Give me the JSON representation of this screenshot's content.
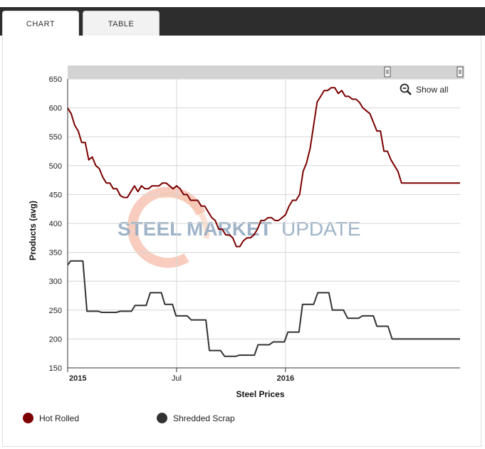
{
  "tabs": [
    {
      "label": "CHART"
    },
    {
      "label": "TABLE"
    }
  ],
  "zoom": {
    "label": "Show all"
  },
  "watermark": {
    "word1": "STEEL",
    "word2": "MARKET",
    "word3": "UPDATE"
  },
  "colors": {
    "hot_rolled": "#7b0000",
    "scrap": "#333333",
    "grid": "#d6d6d6",
    "navigator": "#d3d3d3",
    "watermark_text": "#8fa8bf",
    "watermark_swoosh": "#f2a48a"
  },
  "chart_data": {
    "type": "line",
    "title": "",
    "xlabel": "Steel Prices",
    "ylabel": "Products (avg)",
    "ylim": [
      150,
      650
    ],
    "yticks": [
      150,
      200,
      250,
      300,
      350,
      400,
      450,
      500,
      550,
      600,
      650
    ],
    "xlim": [
      0,
      67
    ],
    "xticks": [
      {
        "x": 0,
        "label": "2015"
      },
      {
        "x": 18.6,
        "label": "Jul"
      },
      {
        "x": 37.2,
        "label": "2016"
      }
    ],
    "series": [
      {
        "name": "Hot Rolled",
        "color": "#7b0000",
        "x": [
          0,
          0.6,
          1.2,
          1.8,
          2.4,
          3,
          3.6,
          4.2,
          4.8,
          5.4,
          6,
          6.6,
          7.2,
          7.8,
          8.4,
          9,
          9.6,
          10.2,
          10.8,
          11.4,
          12,
          12.6,
          13.2,
          13.8,
          14.4,
          15,
          15.6,
          16.2,
          16.8,
          17.4,
          18,
          18.6,
          19.2,
          19.8,
          20.4,
          21,
          21.6,
          22.2,
          22.8,
          23.4,
          24,
          24.6,
          25.2,
          25.8,
          26.4,
          27,
          27.6,
          28.2,
          28.8,
          29.4,
          30,
          30.6,
          31.2,
          31.8,
          32.4,
          33,
          33.6,
          34.2,
          34.8,
          35.4,
          36,
          36.6,
          37.2,
          37.8,
          38.4,
          39,
          39.6,
          40.2,
          40.8,
          41.4,
          42,
          42.6,
          43.2,
          43.8,
          44.4,
          45,
          45.6,
          46.2,
          46.8,
          47.4,
          48,
          48.6,
          49.2,
          49.8,
          50.4,
          51,
          51.6,
          52.2,
          52.8,
          53.4,
          54,
          54.6,
          55.2,
          55.8,
          56.4,
          57,
          57.6,
          58.2,
          58.8,
          59.4,
          60,
          60.6,
          61.2,
          61.8,
          62.4,
          63,
          63.6,
          64.2,
          64.8,
          65.4,
          66,
          66.6,
          67
        ],
        "y": [
          600,
          590,
          570,
          560,
          540,
          540,
          510,
          515,
          500,
          495,
          480,
          470,
          470,
          460,
          460,
          448,
          445,
          445,
          455,
          465,
          455,
          465,
          460,
          460,
          465,
          465,
          465,
          470,
          470,
          465,
          460,
          465,
          460,
          450,
          450,
          440,
          440,
          440,
          430,
          430,
          420,
          410,
          405,
          390,
          390,
          380,
          380,
          375,
          360,
          360,
          370,
          375,
          375,
          380,
          390,
          405,
          405,
          410,
          410,
          405,
          405,
          410,
          415,
          430,
          440,
          440,
          450,
          490,
          505,
          530,
          570,
          610,
          620,
          630,
          630,
          635,
          635,
          625,
          630,
          620,
          620,
          615,
          615,
          610,
          600,
          595,
          590,
          575,
          560,
          560,
          525,
          525,
          510,
          500,
          490,
          470,
          470,
          470,
          470,
          470,
          470,
          470,
          470,
          470,
          470,
          470,
          470,
          470,
          470,
          470,
          470,
          470,
          470
        ]
      },
      {
        "name": "Shredded Scrap",
        "color": "#333333",
        "x": [
          0,
          0.5,
          1,
          2,
          2.6,
          3.3,
          3.9,
          4.5,
          5.2,
          5.8,
          6.4,
          7.1,
          7.7,
          8.3,
          9,
          9.6,
          10.3,
          10.9,
          11.5,
          12.2,
          12.8,
          13.4,
          14.1,
          14.7,
          15.3,
          16,
          16.6,
          17.3,
          17.9,
          18.5,
          19.2,
          19.8,
          20.4,
          21.1,
          21.7,
          22.3,
          23,
          23.6,
          24.2,
          24.9,
          25.5,
          26.1,
          26.8,
          27.4,
          28.1,
          28.7,
          29.3,
          30,
          30.6,
          31.2,
          31.9,
          32.5,
          33.1,
          33.8,
          34.4,
          35.1,
          35.7,
          36.3,
          37,
          37.6,
          38.2,
          38.9,
          39.5,
          40.1,
          40.8,
          41.4,
          42,
          42.7,
          43.3,
          43.9,
          44.6,
          45.2,
          45.9,
          46.5,
          47.1,
          47.8,
          48.4,
          49,
          49.7,
          50.3,
          50.9,
          51.6,
          52.2,
          52.8,
          53.5,
          54.1,
          54.7,
          55.4,
          56,
          56.7,
          57.3,
          57.9,
          58.6,
          59.2,
          59.8,
          60.5,
          61.1,
          61.7,
          62.4,
          63,
          63.6,
          64.3,
          64.9,
          65.5,
          66.2,
          67
        ],
        "y": [
          328,
          335,
          335,
          335,
          335,
          248,
          248,
          248,
          248,
          246,
          246,
          246,
          246,
          246,
          248,
          248,
          248,
          248,
          258,
          258,
          258,
          258,
          280,
          280,
          280,
          280,
          260,
          260,
          260,
          240,
          240,
          240,
          240,
          233,
          233,
          233,
          233,
          233,
          180,
          180,
          180,
          180,
          170,
          170,
          170,
          170,
          172,
          172,
          172,
          172,
          172,
          190,
          190,
          190,
          190,
          195,
          195,
          195,
          195,
          212,
          212,
          212,
          212,
          260,
          260,
          260,
          260,
          280,
          280,
          280,
          280,
          250,
          250,
          250,
          250,
          236,
          236,
          236,
          236,
          240,
          240,
          240,
          240,
          222,
          222,
          222,
          222,
          200,
          200,
          200,
          200,
          200,
          200,
          200,
          200,
          200,
          200,
          200,
          200,
          200,
          200,
          200,
          200,
          200,
          200,
          200
        ]
      }
    ],
    "legend": "bottom-left"
  }
}
